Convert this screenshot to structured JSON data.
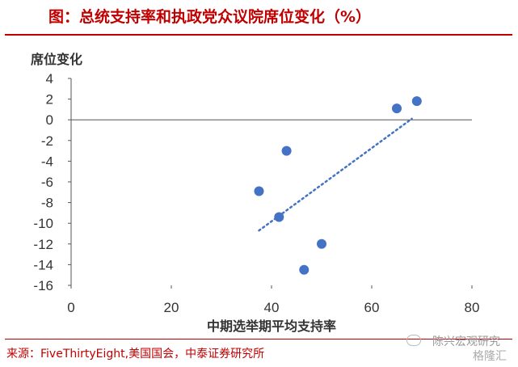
{
  "header": {
    "title": "图：总统支持率和执政党众议院席位变化（%）"
  },
  "source_note": "来源：FiveThirtyEight,美国国会，中泰证券研究所",
  "watermark": {
    "line1": "陈兴宏观研究",
    "line2": "格隆汇"
  },
  "colors": {
    "accent": "#c00000",
    "marker": "#4472c4",
    "trend": "#4472c4"
  },
  "chart_data": {
    "type": "scatter",
    "title": "图：总统支持率和执政党众议院席位变化（%）",
    "xlabel": "中期选举期平均支持率",
    "ylabel": "席位变化",
    "xlim": [
      0,
      80
    ],
    "ylim": [
      -16,
      4
    ],
    "x_ticks": [
      0,
      20,
      40,
      60,
      80
    ],
    "y_ticks": [
      4,
      2,
      0,
      -2,
      -4,
      -6,
      -8,
      -10,
      -12,
      -14,
      -16
    ],
    "grid": false,
    "points": [
      {
        "x": 37.5,
        "y": -6.9
      },
      {
        "x": 41.5,
        "y": -9.4
      },
      {
        "x": 43,
        "y": -3
      },
      {
        "x": 46.5,
        "y": -14.5
      },
      {
        "x": 50,
        "y": -12
      },
      {
        "x": 65,
        "y": 1.1
      },
      {
        "x": 69,
        "y": 1.8
      }
    ],
    "trendline": {
      "style": "dotted",
      "from": {
        "x": 37.5,
        "y": -10.7
      },
      "to": {
        "x": 68,
        "y": 0.1
      }
    }
  }
}
